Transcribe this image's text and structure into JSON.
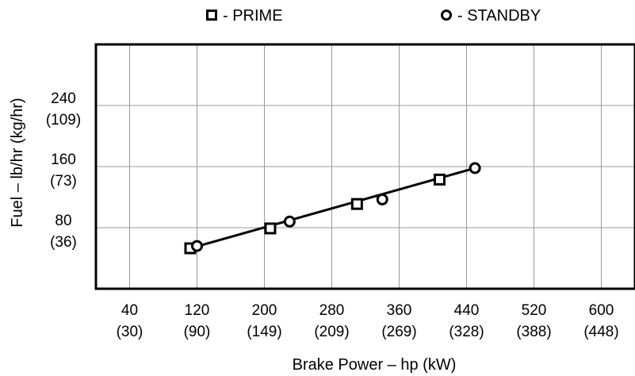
{
  "chart_data": {
    "type": "line",
    "xlabel": "Brake Power – hp (kW)",
    "ylabel": "Fuel – lb/hr (kg/hr)",
    "xlim": [
      0,
      640
    ],
    "ylim": [
      0,
      320
    ],
    "x_ticks": [
      {
        "value": 40,
        "label": "40",
        "sublabel": "(30)"
      },
      {
        "value": 120,
        "label": "120",
        "sublabel": "(90)"
      },
      {
        "value": 200,
        "label": "200",
        "sublabel": "(149)"
      },
      {
        "value": 280,
        "label": "280",
        "sublabel": "(209)"
      },
      {
        "value": 360,
        "label": "360",
        "sublabel": "(269)"
      },
      {
        "value": 440,
        "label": "440",
        "sublabel": "(328)"
      },
      {
        "value": 520,
        "label": "520",
        "sublabel": "(388)"
      },
      {
        "value": 600,
        "label": "600",
        "sublabel": "(448)"
      }
    ],
    "y_ticks": [
      {
        "value": 80,
        "label": "80",
        "sublabel": "(36)"
      },
      {
        "value": 160,
        "label": "160",
        "sublabel": "(73)"
      },
      {
        "value": 240,
        "label": "240",
        "sublabel": "(109)"
      }
    ],
    "grid": true,
    "legend_placement": "top",
    "series": [
      {
        "name": "PRIME",
        "legend_label": "- PRIME",
        "marker": "square",
        "points": [
          [
            112,
            53
          ],
          [
            207,
            79
          ],
          [
            310,
            111
          ],
          [
            408,
            143
          ]
        ]
      },
      {
        "name": "STANDBY",
        "legend_label": "- STANDBY",
        "marker": "circle",
        "points": [
          [
            120,
            56
          ],
          [
            230,
            88
          ],
          [
            340,
            117
          ],
          [
            450,
            158
          ]
        ]
      }
    ],
    "fit_line": [
      [
        112,
        53
      ],
      [
        450,
        158
      ]
    ],
    "colors": {
      "line": "#000000",
      "grid": "#999999",
      "frame": "#000000"
    }
  }
}
